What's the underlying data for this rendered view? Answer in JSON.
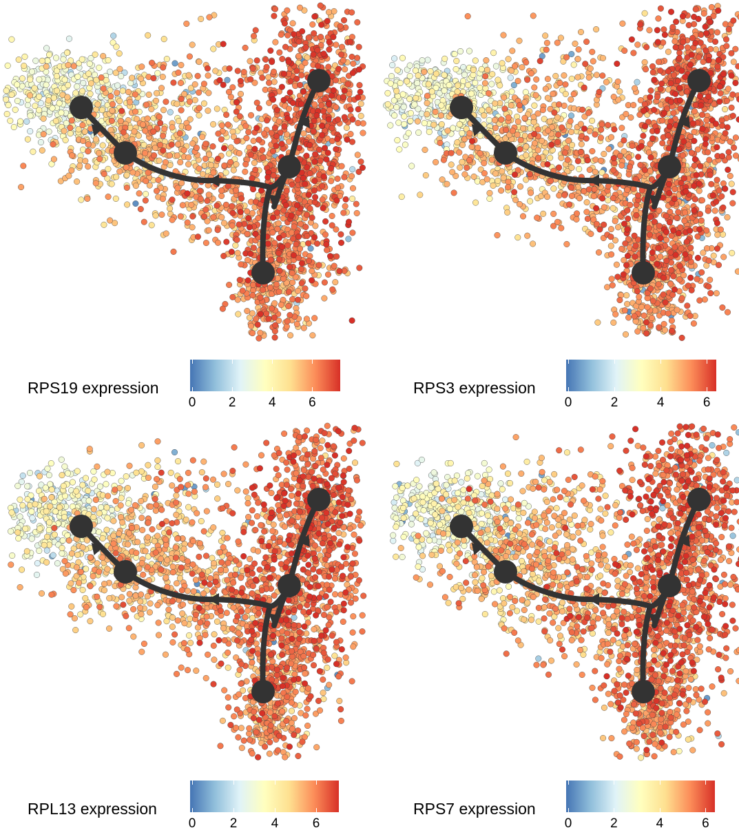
{
  "chart_data": [
    {
      "type": "scatter",
      "gene": "RPS19",
      "legend_title": "RPS19 expression",
      "colorbar_ticks": [
        "0",
        "2",
        "4",
        "6"
      ],
      "color_range": [
        0,
        7.5
      ],
      "colormap": [
        "#4575b4",
        "#91bfdb",
        "#e0f3f8",
        "#ffffbf",
        "#fee090",
        "#fc8d59",
        "#d73027"
      ],
      "trajectory_nodes": 6
    },
    {
      "type": "scatter",
      "gene": "RPS3",
      "legend_title": "RPS3 expression",
      "colorbar_ticks": [
        "0",
        "2",
        "4",
        "6"
      ],
      "color_range": [
        0,
        6.5
      ],
      "colormap": [
        "#4575b4",
        "#91bfdb",
        "#e0f3f8",
        "#ffffbf",
        "#fee090",
        "#fc8d59",
        "#d73027"
      ],
      "trajectory_nodes": 6
    },
    {
      "type": "scatter",
      "gene": "RPL13",
      "legend_title": "RPL13 expression",
      "colorbar_ticks": [
        "0",
        "2",
        "4",
        "6"
      ],
      "color_range": [
        0,
        7.2
      ],
      "colormap": [
        "#4575b4",
        "#91bfdb",
        "#e0f3f8",
        "#ffffbf",
        "#fee090",
        "#fc8d59",
        "#d73027"
      ],
      "trajectory_nodes": 6
    },
    {
      "type": "scatter",
      "gene": "RPS7",
      "legend_title": "RPS7 expression",
      "colorbar_ticks": [
        "0",
        "2",
        "4",
        "6"
      ],
      "color_range": [
        0,
        6.5
      ],
      "colormap": [
        "#4575b4",
        "#91bfdb",
        "#e0f3f8",
        "#ffffbf",
        "#fee090",
        "#fc8d59",
        "#d73027"
      ],
      "trajectory_nodes": 6
    }
  ]
}
